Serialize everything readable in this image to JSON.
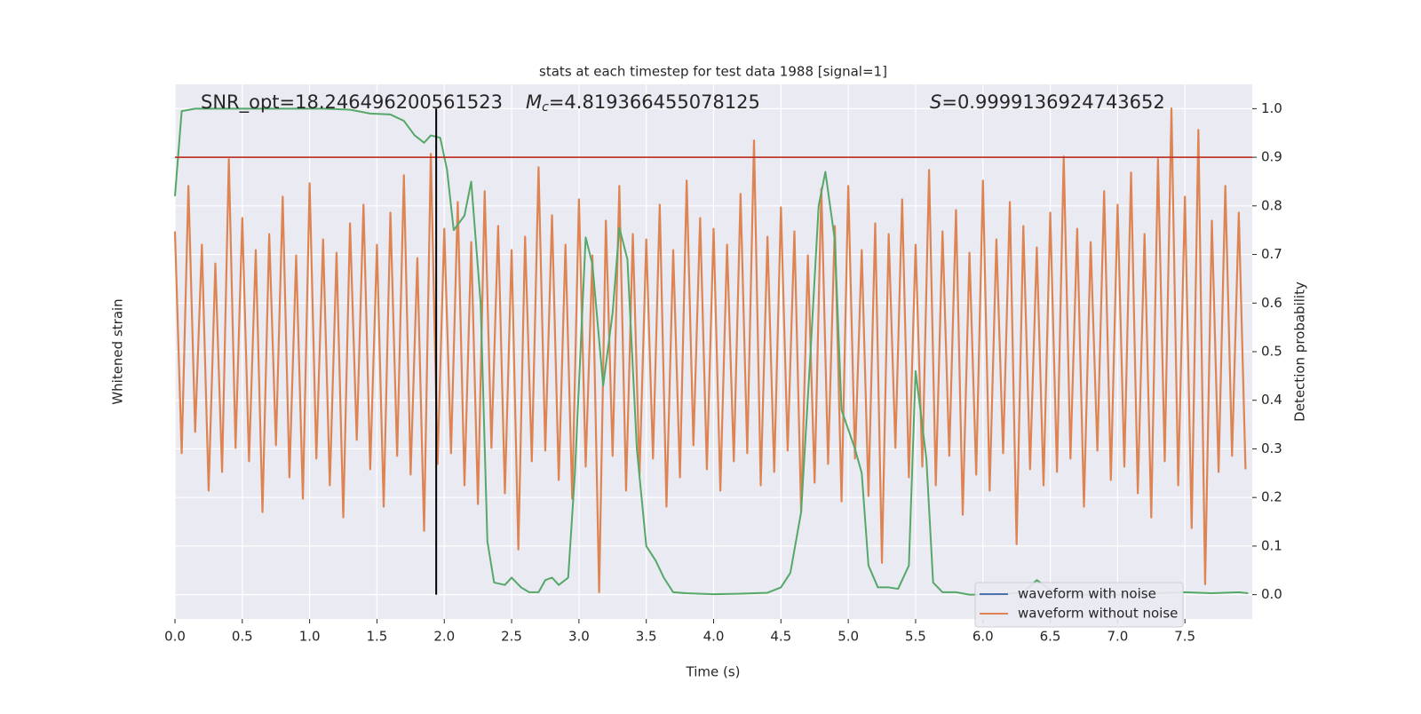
{
  "chart_data": {
    "type": "line",
    "title": "stats at each timestep for test data 1988 [signal=1]",
    "xlabel": "Time (s)",
    "ylabel": "Whitened strain",
    "y2label": "Detection probability",
    "annotations": [
      {
        "text": "SNR_opt=18.246496200561523"
      },
      {
        "symbol": "M",
        "subscript": "c",
        "text": "=4.819366455078125"
      },
      {
        "symbol": "S",
        "text": "=0.9999136924743652"
      }
    ],
    "xlim": [
      0,
      8
    ],
    "xticks": [
      {
        "value": 0,
        "label": "0.0"
      },
      0.5,
      {
        "value": 1,
        "label": "1.0"
      },
      1.5,
      {
        "value": 2,
        "label": "2.0"
      },
      2.5,
      {
        "value": 3,
        "label": "3.0"
      },
      3.5,
      {
        "value": 4,
        "label": "4.0"
      },
      4.5,
      {
        "value": 5,
        "label": "5.0"
      },
      5.5,
      {
        "value": 6,
        "label": "6.0"
      },
      6.5,
      {
        "value": 7,
        "label": "7.0"
      },
      7.5
    ],
    "ylim": [
      -1,
      1
    ],
    "y2lim": [
      -0.05,
      1.05
    ],
    "y2ticks": [
      {
        "value": 0,
        "label": "0.0"
      },
      0.1,
      0.2,
      0.3,
      0.4,
      0.5,
      0.6,
      0.7,
      0.8,
      0.9,
      {
        "value": 1,
        "label": "1.0"
      }
    ],
    "grid": true,
    "legend": "lower right",
    "threshold": {
      "value": 0.9,
      "color": "#c0392b",
      "axis": "y2"
    },
    "marker_x": {
      "value": 1.94,
      "color": "#000000"
    },
    "series": [
      {
        "name": "waveform with noise",
        "color": "#4c72b0"
      },
      {
        "name": "waveform without noise",
        "color": "#dd8452",
        "x": [
          0,
          0.05,
          0.1,
          0.15,
          0.2,
          0.25,
          0.3,
          0.35,
          0.4,
          0.45,
          0.5,
          0.55,
          0.6,
          0.65,
          0.7,
          0.75,
          0.8,
          0.85,
          0.9,
          0.95,
          1,
          1.05,
          1.1,
          1.15,
          1.2,
          1.25,
          1.3,
          1.35,
          1.4,
          1.45,
          1.5,
          1.55,
          1.6,
          1.65,
          1.7,
          1.75,
          1.8,
          1.85,
          1.9,
          1.95,
          2,
          2.05,
          2.1,
          2.15,
          2.2,
          2.25,
          2.3,
          2.35,
          2.4,
          2.45,
          2.5,
          2.55,
          2.6,
          2.65,
          2.7,
          2.75,
          2.8,
          2.85,
          2.9,
          2.95,
          3,
          3.05,
          3.1,
          3.15,
          3.2,
          3.25,
          3.3,
          3.35,
          3.4,
          3.45,
          3.5,
          3.55,
          3.6,
          3.65,
          3.7,
          3.75,
          3.8,
          3.85,
          3.9,
          3.95,
          4,
          4.05,
          4.1,
          4.15,
          4.2,
          4.25,
          4.3,
          4.35,
          4.4,
          4.45,
          4.5,
          4.55,
          4.6,
          4.65,
          4.7,
          4.75,
          4.8,
          4.85,
          4.9,
          4.95,
          5,
          5.05,
          5.1,
          5.15,
          5.2,
          5.25,
          5.3,
          5.35,
          5.4,
          5.45,
          5.5,
          5.55,
          5.6,
          5.65,
          5.7,
          5.75,
          5.8,
          5.85,
          5.9,
          5.95,
          6,
          6.05,
          6.1,
          6.15,
          6.2,
          6.25,
          6.3,
          6.35,
          6.4,
          6.45,
          6.5,
          6.55,
          6.6,
          6.65,
          6.7,
          6.75,
          6.8,
          6.85,
          6.9,
          6.95,
          7,
          7.05,
          7.1,
          7.15,
          7.2,
          7.25,
          7.3,
          7.35,
          7.4,
          7.45,
          7.5,
          7.55,
          7.6,
          7.65,
          7.7,
          7.75,
          7.8,
          7.85,
          7.9,
          7.95
        ],
        "values": [
          0.45,
          -0.38,
          0.62,
          -0.3,
          0.4,
          -0.52,
          0.33,
          -0.45,
          0.72,
          -0.36,
          0.5,
          -0.41,
          0.38,
          -0.6,
          0.44,
          -0.35,
          0.58,
          -0.47,
          0.36,
          -0.55,
          0.63,
          -0.4,
          0.42,
          -0.5,
          0.37,
          -0.62,
          0.48,
          -0.33,
          0.55,
          -0.44,
          0.4,
          -0.58,
          0.52,
          -0.39,
          0.66,
          -0.46,
          0.35,
          -0.67,
          0.74,
          -0.42,
          0.46,
          -0.38,
          0.56,
          -0.5,
          0.41,
          -0.57,
          0.6,
          -0.36,
          0.47,
          -0.53,
          0.38,
          -0.74,
          0.43,
          -0.41,
          0.69,
          -0.37,
          0.51,
          -0.48,
          0.4,
          -0.55,
          0.57,
          -0.43,
          0.36,
          -0.9,
          0.49,
          -0.39,
          0.62,
          -0.52,
          0.44,
          -0.46,
          0.42,
          -0.4,
          0.55,
          -0.58,
          0.38,
          -0.47,
          0.64,
          -0.35,
          0.5,
          -0.44,
          0.46,
          -0.52,
          0.4,
          -0.41,
          0.59,
          -0.38,
          0.79,
          -0.5,
          0.43,
          -0.45,
          0.54,
          -0.37,
          0.45,
          -0.6,
          0.36,
          -0.49,
          0.61,
          -0.42,
          0.47,
          -0.56,
          0.62,
          -0.4,
          0.38,
          -0.54,
          0.48,
          -0.79,
          0.44,
          -0.36,
          0.57,
          -0.47,
          0.4,
          -0.43,
          0.68,
          -0.5,
          0.45,
          -0.39,
          0.53,
          -0.61,
          0.37,
          -0.46,
          0.64,
          -0.52,
          0.42,
          -0.38,
          0.56,
          -0.72,
          0.47,
          -0.44,
          0.39,
          -0.5,
          0.52,
          -0.45,
          0.73,
          -0.4,
          0.46,
          -0.58,
          0.41,
          -0.37,
          0.6,
          -0.48,
          0.55,
          -0.43,
          0.67,
          -0.53,
          0.44,
          -0.62,
          0.72,
          -0.41,
          0.91,
          -0.5,
          0.58,
          -0.66,
          0.83,
          -0.87,
          0.49,
          -0.45,
          0.62,
          -0.39,
          0.52,
          -0.44
        ]
      },
      {
        "name": "Detection probability",
        "color": "#55a868",
        "axis": "y2",
        "x": [
          0,
          0.05,
          0.15,
          0.3,
          0.5,
          0.7,
          0.9,
          1.1,
          1.3,
          1.45,
          1.6,
          1.7,
          1.78,
          1.85,
          1.9,
          1.97,
          2.02,
          2.07,
          2.15,
          2.2,
          2.27,
          2.32,
          2.37,
          2.45,
          2.5,
          2.57,
          2.63,
          2.7,
          2.75,
          2.8,
          2.85,
          2.92,
          2.97,
          3.05,
          3.1,
          3.18,
          3.25,
          3.3,
          3.36,
          3.43,
          3.5,
          3.57,
          3.63,
          3.7,
          3.8,
          4,
          4.2,
          4.4,
          4.5,
          4.57,
          4.65,
          4.72,
          4.78,
          4.83,
          4.9,
          4.95,
          5.05,
          5.1,
          5.15,
          5.22,
          5.3,
          5.37,
          5.45,
          5.5,
          5.58,
          5.63,
          5.7,
          5.8,
          5.9,
          6.1,
          6.3,
          6.4,
          6.5,
          6.7,
          7,
          7.3,
          7.5,
          7.7,
          7.9,
          7.97
        ],
        "values": [
          0.82,
          0.995,
          1,
          1,
          1,
          1,
          1,
          1,
          0.998,
          0.99,
          0.988,
          0.975,
          0.945,
          0.93,
          0.945,
          0.94,
          0.875,
          0.75,
          0.78,
          0.85,
          0.6,
          0.11,
          0.025,
          0.02,
          0.035,
          0.015,
          0.005,
          0.005,
          0.03,
          0.035,
          0.02,
          0.035,
          0.25,
          0.735,
          0.68,
          0.43,
          0.58,
          0.755,
          0.69,
          0.3,
          0.1,
          0.07,
          0.035,
          0.005,
          0.003,
          0.001,
          0.002,
          0.004,
          0.015,
          0.045,
          0.17,
          0.5,
          0.8,
          0.87,
          0.73,
          0.38,
          0.3,
          0.25,
          0.06,
          0.015,
          0.015,
          0.012,
          0.06,
          0.46,
          0.28,
          0.025,
          0.005,
          0.005,
          0,
          0,
          0.005,
          0.03,
          0.01,
          0,
          0,
          0.003,
          0.005,
          0.003,
          0.005,
          0.003
        ]
      }
    ]
  }
}
